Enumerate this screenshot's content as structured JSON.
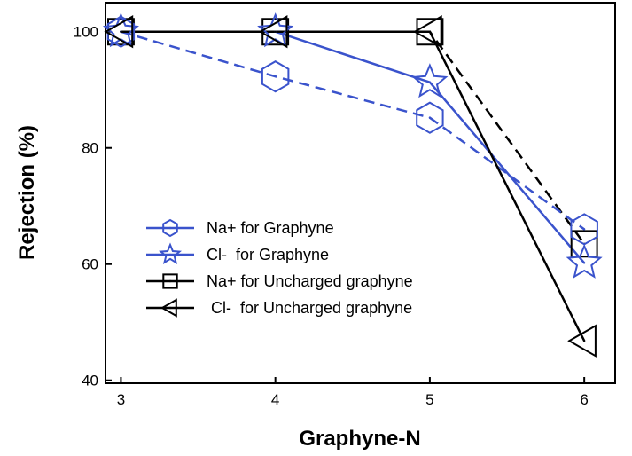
{
  "chart_data": {
    "type": "line",
    "xlabel": "Graphyne-N",
    "ylabel": "Rejection (%)",
    "x": [
      3,
      4,
      5,
      6
    ],
    "xlim": [
      2.9,
      6.2
    ],
    "ylim": [
      39.5,
      105
    ],
    "xticks": [
      3,
      4,
      5,
      6
    ],
    "yticks": [
      40,
      60,
      80,
      100
    ],
    "legend_position": "center-left",
    "grid": false,
    "series": [
      {
        "name": "Na+ for Graphyne",
        "values": [
          100,
          92.3,
          85.2,
          66
        ],
        "color": "#3a53cc",
        "dash": "dashed",
        "marker": "hexagon"
      },
      {
        "name": "Cl-  for Graphyne",
        "values": [
          100,
          100,
          91.3,
          60.2
        ],
        "color": "#3a53cc",
        "dash": "solid",
        "marker": "star"
      },
      {
        "name": "Na+ for Uncharged graphyne",
        "values": [
          100,
          100,
          100,
          63.5
        ],
        "color": "#000000",
        "dash": "dashed",
        "marker": "square"
      },
      {
        "name": " Cl-  for Uncharged graphyne",
        "values": [
          100,
          100,
          100,
          46.8
        ],
        "color": "#000000",
        "dash": "solid",
        "marker": "triangle-left"
      }
    ]
  }
}
